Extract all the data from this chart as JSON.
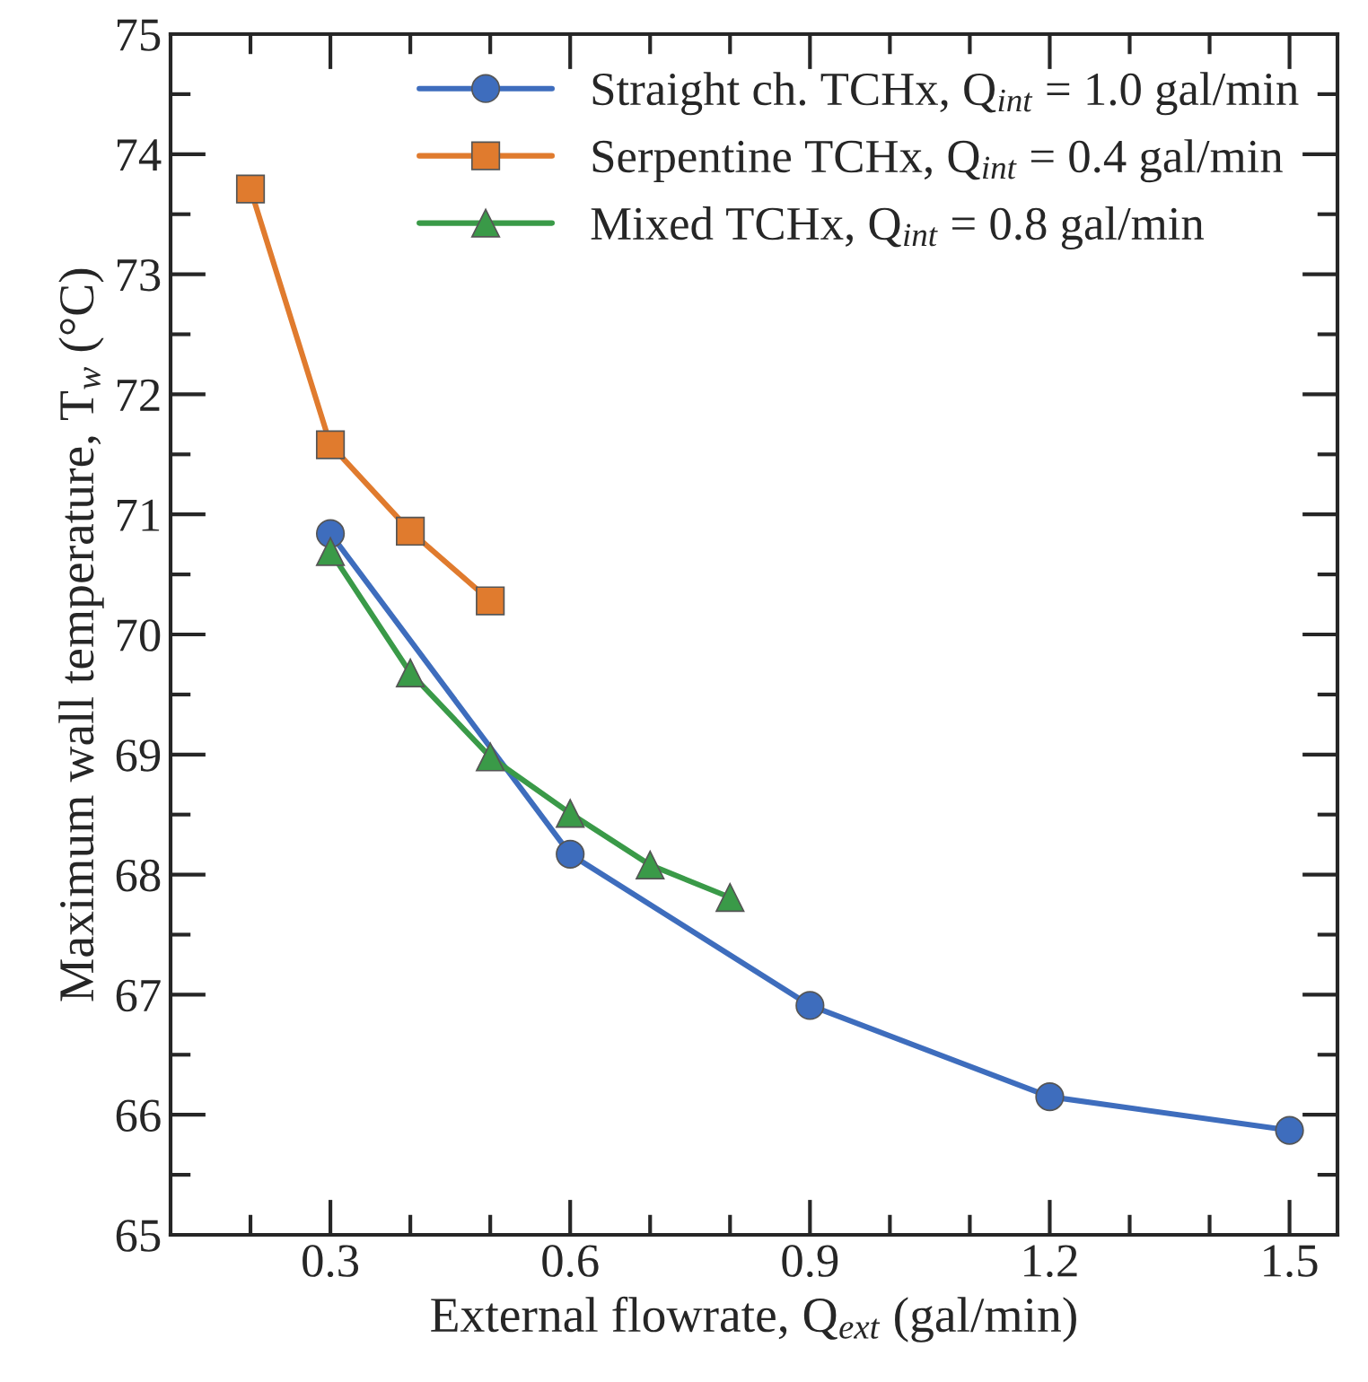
{
  "chart_data": {
    "type": "line",
    "xlabel": "External flowrate, Q$_{ext}$ (gal/min)",
    "ylabel": "Maximum wall temperature, T$_{w}$ (°C)",
    "xlim": [
      0.1,
      1.56
    ],
    "ylim": [
      65,
      75
    ],
    "xticks": [
      {
        "value": 0.2,
        "label": null
      },
      0.3,
      {
        "value": 0.4,
        "label": null
      },
      {
        "value": 0.5,
        "label": null
      },
      0.6,
      {
        "value": 0.7,
        "label": null
      },
      {
        "value": 0.8,
        "label": null
      },
      0.9,
      {
        "value": 1.0,
        "label": null
      },
      {
        "value": 1.1,
        "label": null
      },
      1.2,
      {
        "value": 1.3,
        "label": null
      },
      {
        "value": 1.4,
        "label": null
      },
      1.5
    ],
    "yticks": [
      65,
      {
        "value": 65.5,
        "label": null
      },
      66,
      {
        "value": 66.5,
        "label": null
      },
      67,
      {
        "value": 67.5,
        "label": null
      },
      68,
      {
        "value": 68.5,
        "label": null
      },
      69,
      {
        "value": 69.5,
        "label": null
      },
      70,
      {
        "value": 70.5,
        "label": null
      },
      71,
      {
        "value": 71.5,
        "label": null
      },
      72,
      {
        "value": 72.5,
        "label": null
      },
      73,
      {
        "value": 73.5,
        "label": null
      },
      74,
      {
        "value": 74.5,
        "label": null
      },
      75
    ],
    "grid": false,
    "legend": "top right",
    "line_style": "solid",
    "series": [
      {
        "name": "Straight ch. TCHx, Q$_{int}$ = 1.0 gal/min",
        "color": "#3e6dbd",
        "marker": "circle",
        "x": [
          0.3,
          0.6,
          0.9,
          1.2,
          1.5
        ],
        "values": [
          70.84,
          68.17,
          66.91,
          66.15,
          65.87
        ]
      },
      {
        "name": "Serpentine TCHx, Q$_{int}$ = 0.4 gal/min",
        "color": "#e07b2e",
        "marker": "square",
        "x": [
          0.2,
          0.3,
          0.4,
          0.5
        ],
        "values": [
          73.71,
          71.58,
          70.86,
          70.28
        ]
      },
      {
        "name": "Mixed TCHx, Q$_{int}$ = 0.8 gal/min",
        "color": "#3a9a48",
        "marker": "triangle",
        "x": [
          0.3,
          0.4,
          0.5,
          0.6,
          0.7,
          0.8
        ],
        "values": [
          70.69,
          69.68,
          68.98,
          68.51,
          68.08,
          67.81
        ]
      }
    ]
  }
}
